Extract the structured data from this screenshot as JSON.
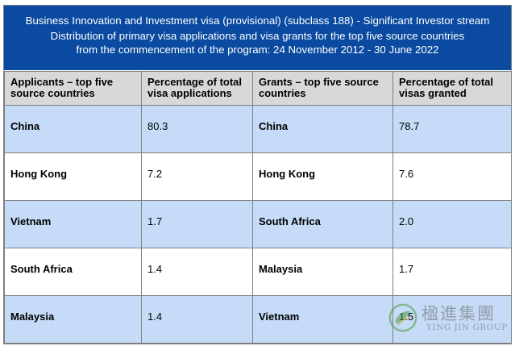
{
  "title": {
    "line1": "Business Innovation and Investment visa (provisional) (subclass 188) - Significant Investor stream",
    "line2": "Distribution of primary visa applications and visa grants for the top five source countries",
    "line3": "from the commencement of the program: 24 November 2012 - 30 June 2022"
  },
  "table": {
    "headers": [
      "Applicants – top five source countries",
      "Percentage of total visa applications",
      "Grants – top five source countries",
      "Percentage of total visas granted"
    ],
    "rows": [
      [
        "China",
        "80.3",
        "China",
        "78.7"
      ],
      [
        "Hong Kong",
        "7.2",
        "Hong Kong",
        "7.6"
      ],
      [
        "Vietnam",
        "1.7",
        "South Africa",
        "2.0"
      ],
      [
        "South Africa",
        "1.4",
        "Malaysia",
        "1.7"
      ],
      [
        "Malaysia",
        "1.4",
        "Vietnam",
        "1.5"
      ]
    ]
  },
  "watermark": {
    "chinese": "楹進集團",
    "english": "YING JIN GROUP"
  },
  "colors": {
    "header_bar": "#0a4aa0",
    "row_highlight": "#c6dbf7",
    "column_header": "#d8d8d8",
    "logo_green": "#4a9a3a"
  }
}
